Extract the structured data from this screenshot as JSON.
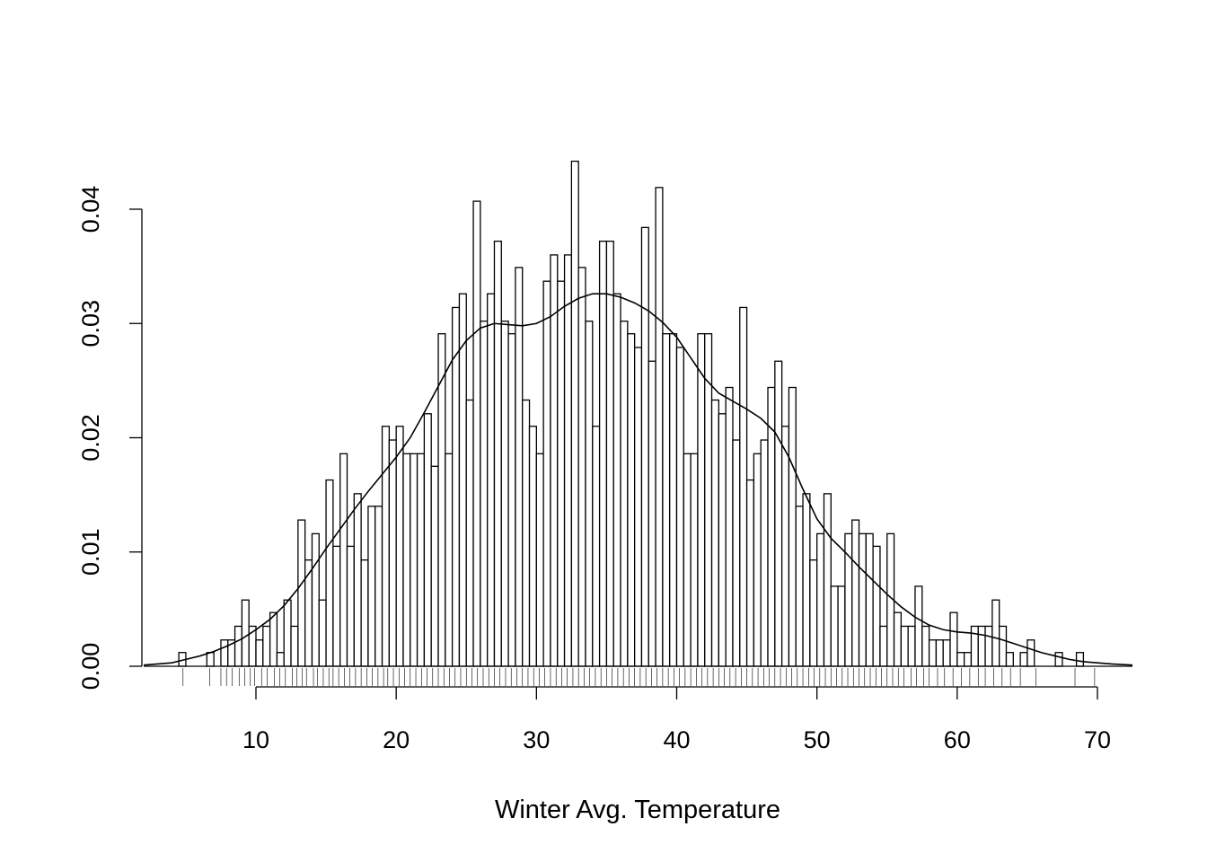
{
  "chart_data": {
    "type": "bar",
    "title": "",
    "xlabel": "Winter Avg. Temperature",
    "ylabel": "",
    "xlim": [
      2,
      72.5
    ],
    "ylim": [
      0,
      0.044
    ],
    "x_ticks": [
      10,
      20,
      30,
      40,
      50,
      60,
      70
    ],
    "x_tick_labels": [
      "10",
      "20",
      "30",
      "40",
      "50",
      "60",
      "70"
    ],
    "y_ticks": [
      0,
      0.01,
      0.02,
      0.03,
      0.04
    ],
    "y_tick_labels": [
      "0.00",
      "0.01",
      "0.02",
      "0.03",
      "0.04"
    ],
    "grid": false,
    "legend": "none",
    "bin_start": 4.5,
    "bin_width": 0.5,
    "densities": [
      0.0012,
      0,
      0,
      0,
      0.0012,
      0,
      0.0023,
      0.0023,
      0.0035,
      0.0058,
      0.0035,
      0.0023,
      0.0035,
      0.0047,
      0.0012,
      0.0058,
      0.0035,
      0.0128,
      0.0093,
      0.0116,
      0.0058,
      0.0163,
      0.0105,
      0.0186,
      0.0105,
      0.0151,
      0.0093,
      0.014,
      0.014,
      0.021,
      0.0198,
      0.021,
      0.0186,
      0.0186,
      0.0186,
      0.0221,
      0.0175,
      0.0291,
      0.0186,
      0.0314,
      0.0326,
      0.0233,
      0.0407,
      0.0302,
      0.0326,
      0.0372,
      0.0302,
      0.0291,
      0.0349,
      0.0233,
      0.021,
      0.0186,
      0.0337,
      0.036,
      0.0337,
      0.036,
      0.0442,
      0.0349,
      0.0302,
      0.021,
      0.0372,
      0.0372,
      0.0326,
      0.0302,
      0.0291,
      0.0279,
      0.0384,
      0.0267,
      0.0419,
      0.0291,
      0.0291,
      0.0279,
      0.0186,
      0.0186,
      0.0291,
      0.0291,
      0.0233,
      0.0221,
      0.0244,
      0.0198,
      0.0314,
      0.0163,
      0.0186,
      0.0198,
      0.0244,
      0.0267,
      0.021,
      0.0244,
      0.014,
      0.0151,
      0.0093,
      0.0116,
      0.0151,
      0.007,
      0.007,
      0.0116,
      0.0128,
      0.0116,
      0.0116,
      0.0105,
      0.0035,
      0.0116,
      0.0047,
      0.0035,
      0.0035,
      0.007,
      0.0035,
      0.0023,
      0.0023,
      0.0023,
      0.0047,
      0.0012,
      0.0012,
      0.0035,
      0.0035,
      0.0035,
      0.0058,
      0.0035,
      0.0012,
      0,
      0.0012,
      0.0023,
      0,
      0,
      0,
      0.0012,
      0,
      0,
      0.0012
    ],
    "density_curve": {
      "x": [
        2,
        4,
        5,
        6,
        7,
        8,
        9,
        10,
        11,
        12,
        13,
        14,
        15,
        16,
        17,
        18,
        19,
        20,
        21,
        22,
        23,
        24,
        25,
        26,
        27,
        28,
        29,
        30,
        31,
        32,
        33,
        34,
        35,
        36,
        37,
        38,
        39,
        40,
        41,
        42,
        43,
        44,
        45,
        46,
        47,
        48,
        49,
        50,
        51,
        52,
        53,
        54,
        55,
        56,
        57,
        58,
        59,
        60,
        61,
        62,
        63,
        64,
        65,
        66,
        67,
        68,
        69,
        70,
        71,
        72.5
      ],
      "y": [
        0.0001,
        0.0003,
        0.0006,
        0.0009,
        0.0013,
        0.0018,
        0.0024,
        0.0032,
        0.0041,
        0.0053,
        0.0068,
        0.0085,
        0.0103,
        0.012,
        0.0137,
        0.0153,
        0.0168,
        0.0183,
        0.02,
        0.0222,
        0.0245,
        0.0268,
        0.0285,
        0.0296,
        0.03,
        0.0299,
        0.0298,
        0.03,
        0.0306,
        0.0315,
        0.0322,
        0.0326,
        0.0326,
        0.0323,
        0.0318,
        0.0311,
        0.0301,
        0.0288,
        0.027,
        0.0252,
        0.0239,
        0.0232,
        0.0225,
        0.0217,
        0.0205,
        0.0183,
        0.0155,
        0.0129,
        0.0112,
        0.01,
        0.0087,
        0.0075,
        0.0063,
        0.0052,
        0.0043,
        0.0036,
        0.0032,
        0.003,
        0.0029,
        0.0027,
        0.0024,
        0.002,
        0.0016,
        0.0012,
        0.0009,
        0.0006,
        0.0004,
        0.0003,
        0.0002,
        0.0001
      ]
    },
    "rug": [
      4.8,
      6.7,
      7.5,
      7.9,
      8.3,
      8.8,
      9.2,
      9.6,
      9.9,
      10.4,
      10.8,
      11.3,
      11.7,
      12.1,
      12.6,
      12.9,
      13.3,
      13.6,
      14.1,
      14.4,
      14.8,
      15.2,
      15.5,
      15.9,
      16.3,
      16.7,
      17.1,
      17.5,
      17.9,
      18.3,
      18.7,
      19.1,
      19.4,
      19.8,
      20.2,
      20.6,
      21.0,
      21.4,
      21.8,
      22.2,
      22.6,
      23.0,
      23.4,
      23.8,
      24.2,
      24.6,
      25.0,
      25.4,
      25.8,
      26.2,
      26.6,
      27.0,
      27.4,
      27.8,
      28.2,
      28.6,
      29.0,
      29.4,
      29.8,
      30.2,
      30.6,
      31.0,
      31.4,
      31.8,
      32.2,
      32.6,
      33.0,
      33.4,
      33.8,
      34.2,
      34.6,
      35.0,
      35.4,
      35.8,
      36.2,
      36.6,
      37.0,
      37.4,
      37.8,
      38.2,
      38.6,
      39.0,
      39.4,
      39.8,
      40.2,
      40.6,
      41.0,
      41.4,
      41.8,
      42.2,
      42.6,
      43.0,
      43.4,
      43.8,
      44.2,
      44.6,
      45.0,
      45.4,
      45.8,
      46.2,
      46.6,
      47.0,
      47.4,
      47.8,
      48.2,
      48.6,
      49.0,
      49.4,
      49.8,
      50.2,
      50.6,
      51.0,
      51.4,
      51.8,
      52.2,
      52.6,
      53.0,
      53.4,
      53.8,
      54.2,
      54.6,
      55.0,
      55.4,
      55.8,
      56.2,
      56.7,
      57.1,
      57.6,
      58.0,
      58.6,
      59.1,
      59.7,
      60.3,
      60.9,
      61.5,
      62.0,
      62.6,
      63.2,
      63.8,
      64.5,
      65.6,
      68.4,
      69.8
    ]
  }
}
